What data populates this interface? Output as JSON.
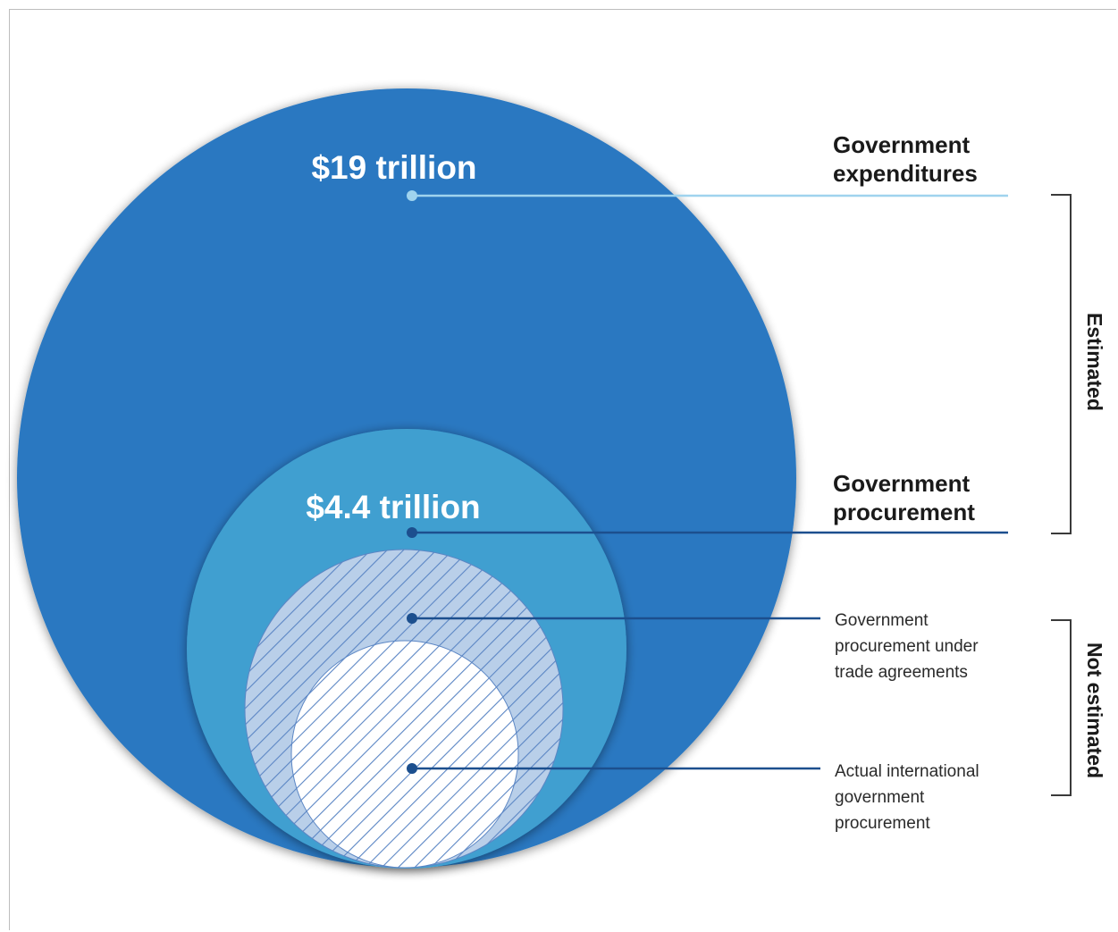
{
  "diagram": {
    "levels": [
      {
        "value": "$19 trillion",
        "label_lines": [
          "Government",
          "expenditures"
        ]
      },
      {
        "value": "$4.4 trillion",
        "label_lines": [
          "Government",
          "procurement"
        ]
      },
      {
        "value": "",
        "label_lines": [
          "Government",
          "procurement under",
          "trade agreements"
        ]
      },
      {
        "value": "",
        "label_lines": [
          "Actual international",
          "government",
          "procurement"
        ]
      }
    ],
    "brackets": [
      {
        "label": "Estimated"
      },
      {
        "label": "Not estimated"
      }
    ],
    "colors": {
      "outer_circle": "#2b78c1",
      "procurement_circle": "#3f9fd0",
      "trade_circle_fill": "#b9cfe9",
      "actual_circle_fill": "#ffffff",
      "hatch": "#5b86c4",
      "leader_light": "#9fd3ee",
      "leader_dark": "#1c4f8e"
    }
  }
}
